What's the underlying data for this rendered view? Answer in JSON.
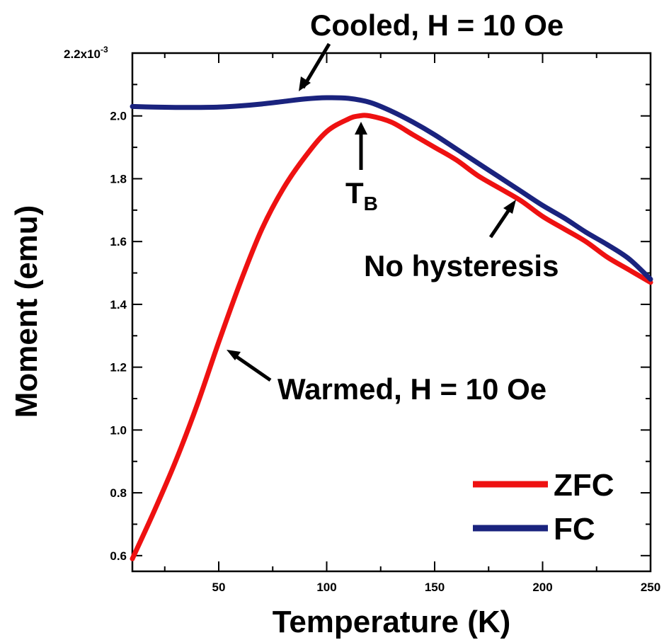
{
  "chart_data": {
    "type": "line",
    "xlabel": "Temperature (K)",
    "ylabel": "Moment (emu)",
    "xlim": [
      10,
      250
    ],
    "ylim": [
      0.55,
      2.2
    ],
    "y_multiplier_label": "2.2x10",
    "y_multiplier_exp": "-3",
    "x_ticks": [
      50,
      100,
      150,
      200,
      250
    ],
    "x_tick_labels": [
      "50",
      "100",
      "150",
      "200",
      "250"
    ],
    "y_ticks": [
      0.6,
      0.8,
      1.0,
      1.2,
      1.4,
      1.6,
      1.8,
      2.0
    ],
    "y_tick_labels": [
      "0.6",
      "0.8",
      "1.0",
      "1.2",
      "1.4",
      "1.6",
      "1.8",
      "2.0"
    ],
    "grid": false,
    "legend_position": "bottom-right",
    "series": [
      {
        "name": "ZFC",
        "color": "#ee1111",
        "x": [
          10,
          20,
          30,
          40,
          50,
          60,
          70,
          80,
          90,
          100,
          110,
          115,
          120,
          130,
          140,
          150,
          160,
          170,
          180,
          190,
          200,
          210,
          220,
          230,
          240,
          250
        ],
        "y": [
          0.59,
          0.74,
          0.9,
          1.08,
          1.28,
          1.47,
          1.64,
          1.77,
          1.87,
          1.95,
          1.99,
          2.0,
          2.0,
          1.98,
          1.94,
          1.9,
          1.86,
          1.81,
          1.77,
          1.73,
          1.68,
          1.64,
          1.6,
          1.55,
          1.51,
          1.47
        ]
      },
      {
        "name": "FC",
        "color": "#1a237e",
        "x": [
          10,
          20,
          30,
          40,
          50,
          60,
          70,
          80,
          90,
          100,
          110,
          120,
          130,
          140,
          150,
          160,
          170,
          180,
          190,
          200,
          210,
          220,
          230,
          240,
          250
        ],
        "y": [
          2.03,
          2.028,
          2.027,
          2.027,
          2.028,
          2.032,
          2.038,
          2.046,
          2.054,
          2.058,
          2.056,
          2.043,
          2.015,
          1.98,
          1.94,
          1.895,
          1.85,
          1.805,
          1.76,
          1.715,
          1.675,
          1.63,
          1.59,
          1.545,
          1.48
        ]
      }
    ],
    "annotations": [
      {
        "id": "cooled",
        "text": "Cooled, H = 10 Oe"
      },
      {
        "id": "tb",
        "text": "T",
        "sub": "B"
      },
      {
        "id": "nohyst",
        "text": "No hysteresis"
      },
      {
        "id": "warmed",
        "text": "Warmed, H = 10 Oe"
      }
    ]
  }
}
